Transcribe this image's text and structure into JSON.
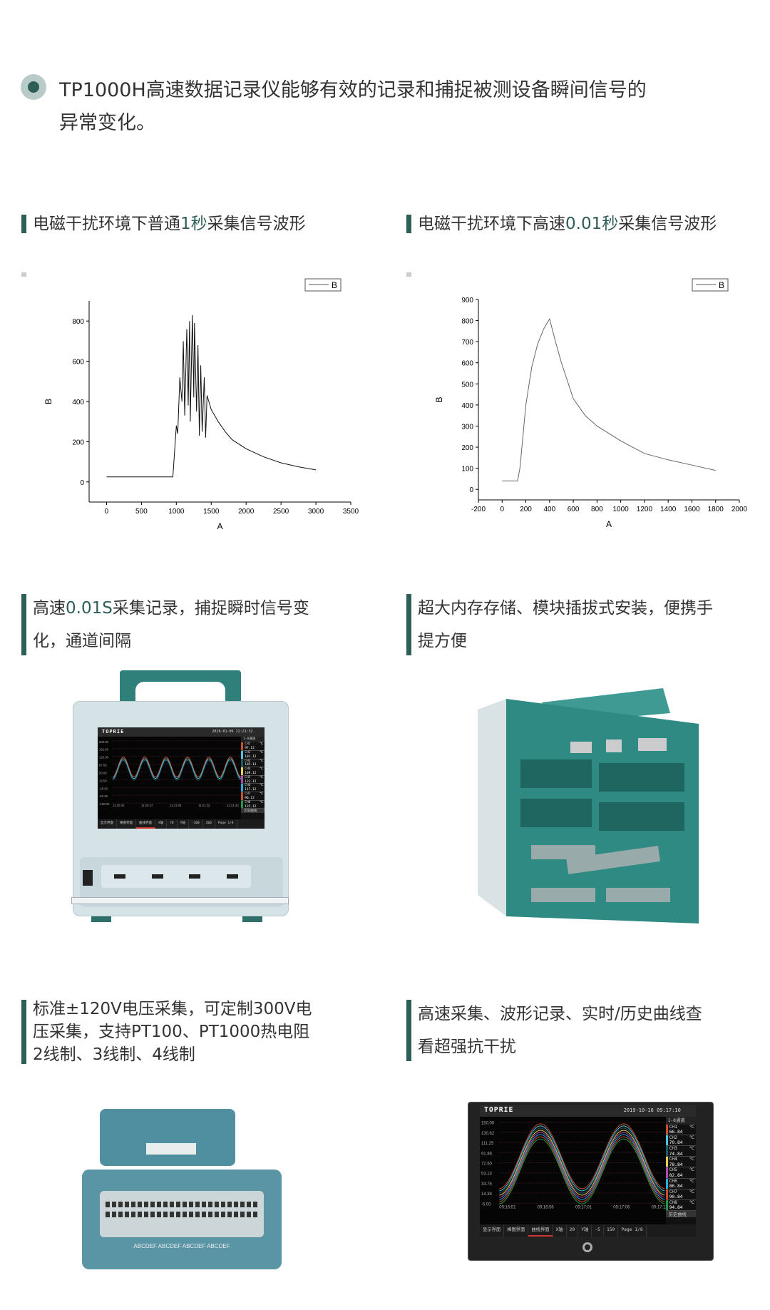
{
  "intro": {
    "lines": [
      "TP1000H高速数据记录仪能够有效的记录和捕捉被测设备瞬间信号的",
      "异常变化。"
    ]
  },
  "colors": {
    "accent": "#2d5f58",
    "bullet_ring": "#b9cbc8",
    "device_teal": "#2f7f7a",
    "device_body": "#d9e6e8"
  },
  "sections": [
    {
      "parts": [
        "电磁干扰环境下普通",
        "1秒",
        "采集信号波形"
      ]
    },
    {
      "parts": [
        "电磁干扰环境下高速",
        "0.01秒",
        "采集信号波形"
      ]
    },
    {
      "lines": [
        [
          "高速",
          "0.01S",
          "采集记录，捕捉瞬时信号变"
        ],
        [
          "化，通道间隔"
        ]
      ]
    },
    {
      "lines": [
        [
          "超大内存存储、模块插拔式安装，便携手"
        ],
        [
          "提方便"
        ]
      ]
    },
    {
      "lines": [
        [
          "标准±120V电压采集，可定制300V电"
        ],
        [
          "压采集，支持PT100、PT1000热电阻"
        ],
        [
          "2线制、3线制、4线制"
        ]
      ]
    },
    {
      "lines": [
        [
          "高速采集、波形记录、实时/历史曲线查"
        ],
        [
          "看超强抗干扰"
        ]
      ]
    }
  ],
  "chart_data": [
    {
      "type": "line",
      "xlabel": "A",
      "ylabel": "B",
      "legend": [
        "B"
      ],
      "legend_position": "top-right",
      "grid": false,
      "xlim": [
        -250,
        3500
      ],
      "ylim": [
        -100,
        900
      ],
      "xticks": [
        0,
        500,
        1000,
        1500,
        2000,
        2500,
        3000,
        3500
      ],
      "yticks": [
        0,
        200,
        400,
        600,
        800
      ],
      "series": [
        {
          "name": "B",
          "x": [
            0,
            950,
            1000,
            1020,
            1050,
            1080,
            1100,
            1120,
            1150,
            1170,
            1190,
            1200,
            1230,
            1250,
            1260,
            1290,
            1310,
            1330,
            1350,
            1370,
            1400,
            1420,
            1440,
            1500,
            1600,
            1700,
            1800,
            2000,
            2250,
            2500,
            2750,
            3000
          ],
          "y": [
            25,
            25,
            280,
            240,
            520,
            400,
            700,
            330,
            760,
            380,
            800,
            300,
            830,
            420,
            790,
            350,
            680,
            230,
            580,
            250,
            520,
            220,
            430,
            360,
            300,
            250,
            210,
            165,
            125,
            95,
            75,
            60
          ]
        }
      ]
    },
    {
      "type": "line",
      "xlabel": "A",
      "ylabel": "B",
      "legend": [
        "B"
      ],
      "legend_position": "top-right",
      "grid": false,
      "xlim": [
        -200,
        2000
      ],
      "ylim": [
        -50,
        900
      ],
      "xticks": [
        -200,
        0,
        200,
        400,
        600,
        800,
        1000,
        1200,
        1400,
        1600,
        1800,
        2000
      ],
      "yticks": [
        0,
        100,
        200,
        300,
        400,
        500,
        600,
        700,
        800,
        900
      ],
      "series": [
        {
          "name": "B",
          "x": [
            0,
            130,
            150,
            200,
            250,
            300,
            350,
            400,
            450,
            500,
            600,
            700,
            800,
            1000,
            1200,
            1400,
            1600,
            1800
          ],
          "y": [
            40,
            40,
            100,
            400,
            580,
            690,
            760,
            808,
            700,
            600,
            430,
            350,
            300,
            230,
            170,
            140,
            115,
            90
          ]
        }
      ]
    }
  ],
  "device1_screen": {
    "logo": "TOPRIE",
    "datetime": "2020-01-06  11:21:32",
    "channel_group": "1-8通道",
    "yaxis": [
      "200.00",
      "162.50",
      "125.00",
      "87.50",
      "50.00",
      "12.50",
      "-25.00",
      "-62.50",
      "-100.00"
    ],
    "times": [
      "11:20:30",
      "11:20:47",
      "11:21:05",
      "11:21:22",
      "11:21:40"
    ],
    "channels": [
      {
        "name": "CH1",
        "value": "97.12",
        "color": "#c8502a"
      },
      {
        "name": "CH2",
        "value": "101.12",
        "color": "#4fc3e0"
      },
      {
        "name": "CH3",
        "value": "105.12",
        "color": "#1f5a6a"
      },
      {
        "name": "CH4",
        "value": "109.12",
        "color": "#e8d04a"
      },
      {
        "name": "CH5",
        "value": "123.12",
        "color": "#b048b0"
      },
      {
        "name": "CH6",
        "value": "117.12",
        "color": "#2aa8e0"
      },
      {
        "name": "CH7",
        "value": "96.12",
        "color": "#c8502a"
      },
      {
        "name": "CH8",
        "value": "125.12",
        "color": "#1a9a4a"
      }
    ],
    "unit": "℃",
    "history": "历史曲线",
    "tabs": [
      "显示界面",
      "棒图界面",
      "曲线界面",
      "X轴",
      "70",
      "Y轴",
      "-100",
      "200",
      "Page 1/8"
    ]
  },
  "device4_screen": {
    "logo": "TOPRIE",
    "datetime": "2019-10-16  09:17:10",
    "channel_group": "1-8通道",
    "yaxis": [
      "150.00",
      "130.62",
      "111.25",
      "91.88",
      "72.50",
      "53.13",
      "33.75",
      "14.38",
      "-5.00"
    ],
    "times": [
      "09:16:51",
      "09:16:56",
      "09:17:01",
      "09:17:06",
      "09:17:11"
    ],
    "channels": [
      {
        "name": "CH1",
        "value": "66.84",
        "color": "#c8502a"
      },
      {
        "name": "CH2",
        "value": "70.84",
        "color": "#4fc3e0"
      },
      {
        "name": "CH3",
        "value": "74.84",
        "color": "#1f5a6a"
      },
      {
        "name": "CH4",
        "value": "78.84",
        "color": "#e8d04a"
      },
      {
        "name": "CH5",
        "value": "82.84",
        "color": "#b048b0"
      },
      {
        "name": "CH6",
        "value": "86.84",
        "color": "#2aa8e0"
      },
      {
        "name": "CH7",
        "value": "90.84",
        "color": "#c8502a"
      },
      {
        "name": "CH8",
        "value": "94.84",
        "color": "#1a9a4a"
      }
    ],
    "unit": "℃",
    "history": "历史曲线",
    "tabs": [
      "显示界面",
      "棒图界面",
      "曲线界面",
      "X轴",
      "20",
      "Y轴",
      "-5",
      "150",
      "Page 1/8"
    ]
  },
  "module_labels": "ABCDEF ABCDEF ABCDEF ABCDEF"
}
